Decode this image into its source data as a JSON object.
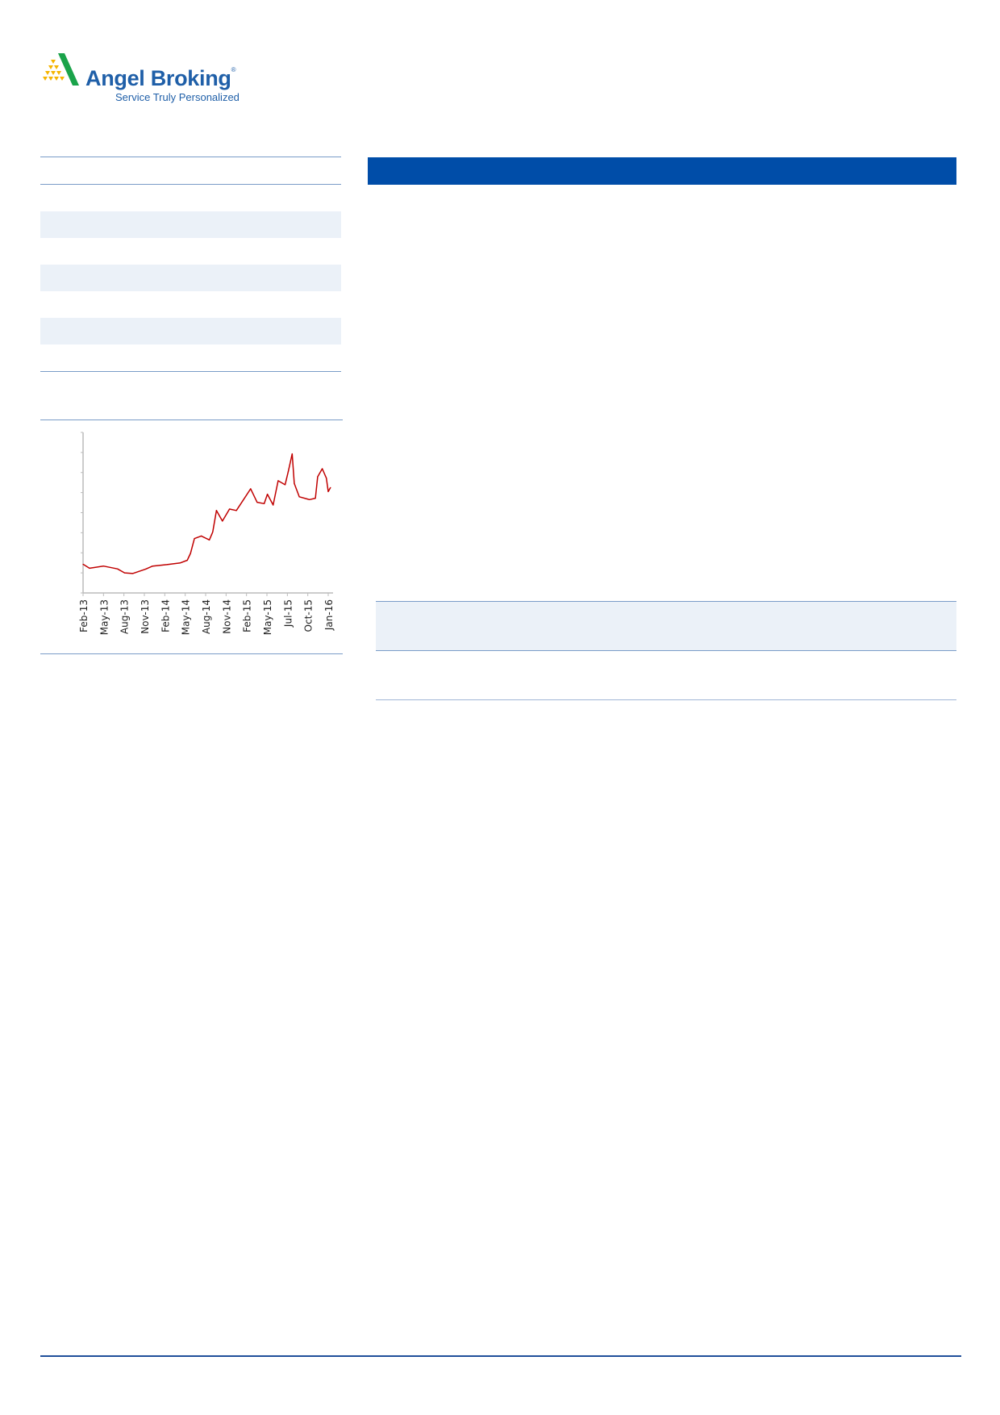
{
  "logo": {
    "name": "Angel Broking",
    "registered": "®",
    "tagline": "Service Truly Personalized"
  },
  "colors": {
    "brand_blue": "#004da8",
    "rule": "#7a9cc8",
    "stripe": "#ebf1f8",
    "series": "#c00000"
  },
  "chart_data": {
    "type": "line",
    "title": "",
    "xlabel": "",
    "ylabel": "",
    "x_tick_labels": [
      "Feb-13",
      "May-13",
      "Aug-13",
      "Nov-13",
      "Feb-14",
      "May-14",
      "Aug-14",
      "Nov-14",
      "Feb-15",
      "May-15",
      "Jul-15",
      "Oct-15",
      "Jan-16"
    ],
    "y_ticks_labeled": false,
    "y_tick_count": 8,
    "ylim": [
      0,
      8
    ],
    "grid": false,
    "legend": "none",
    "series": [
      {
        "color": "#c00000",
        "x": [
          "2013-02-01",
          "2013-03-01",
          "2013-05-01",
          "2013-07-01",
          "2013-08-01",
          "2013-09-05",
          "2013-11-01",
          "2013-12-01",
          "2014-02-01",
          "2014-04-01",
          "2014-05-01",
          "2014-05-15",
          "2014-06-01",
          "2014-07-01",
          "2014-08-05",
          "2014-08-20",
          "2014-09-05",
          "2014-10-01",
          "2014-11-01",
          "2014-12-01",
          "2015-01-01",
          "2015-02-01",
          "2015-03-01",
          "2015-04-01",
          "2015-04-15",
          "2015-05-10",
          "2015-06-01",
          "2015-07-01",
          "2015-07-15",
          "2015-08-01",
          "2015-08-10",
          "2015-09-01",
          "2015-10-15",
          "2015-11-10",
          "2015-11-20",
          "2015-12-10",
          "2015-12-28",
          "2016-01-05",
          "2016-01-15"
        ],
        "y": [
          1.43,
          1.23,
          1.34,
          1.2,
          1.0,
          0.97,
          1.19,
          1.34,
          1.41,
          1.5,
          1.63,
          1.97,
          2.71,
          2.84,
          2.64,
          3.04,
          4.11,
          3.58,
          4.18,
          4.11,
          4.65,
          5.19,
          4.52,
          4.45,
          4.92,
          4.38,
          5.59,
          5.39,
          6.06,
          6.93,
          5.46,
          4.79,
          4.65,
          4.72,
          5.79,
          6.19,
          5.72,
          5.05,
          5.25
        ]
      }
    ]
  }
}
